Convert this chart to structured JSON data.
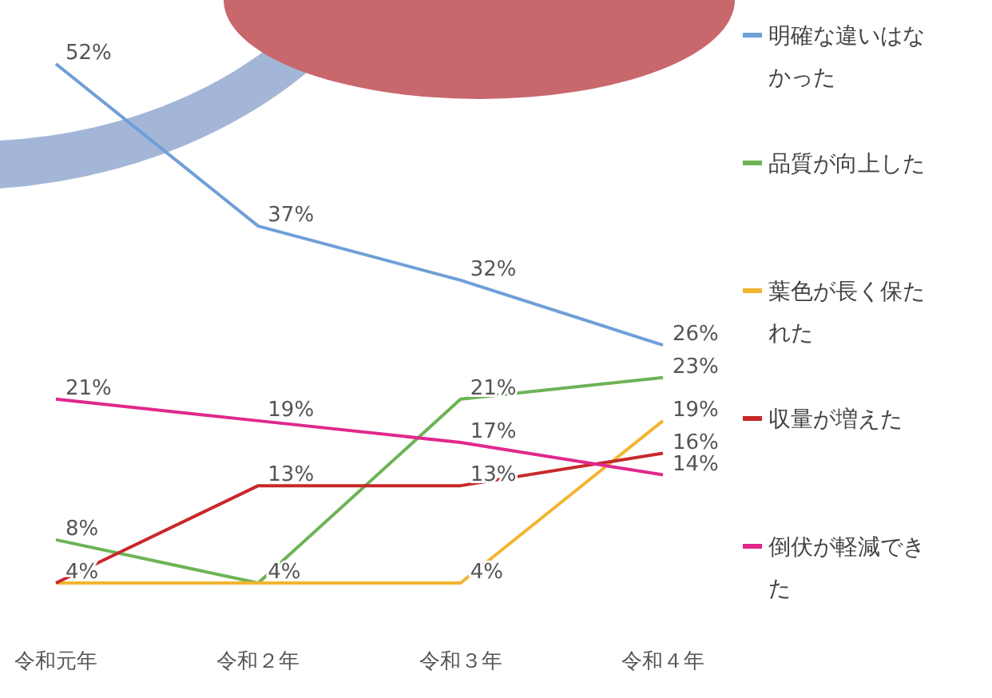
{
  "chart_data": {
    "type": "line",
    "categories": [
      "令和元年",
      "令和２年",
      "令和３年",
      "令和４年"
    ],
    "series": [
      {
        "name": "明確な違いはなかった",
        "color": "#6f9fd8",
        "values": [
          52,
          37,
          32,
          26
        ],
        "value_labels": [
          "52%",
          "37%",
          "32%",
          "26%"
        ]
      },
      {
        "name": "品質が向上した",
        "color": "#6db356",
        "values": [
          8,
          4,
          21,
          23
        ],
        "value_labels": [
          "8%",
          "4%",
          "21%",
          "23%"
        ]
      },
      {
        "name": "葉色が長く保たれた",
        "color": "#f2b530",
        "values": [
          4,
          4,
          4,
          19
        ],
        "value_labels": [
          null,
          null,
          "4%",
          "19%"
        ]
      },
      {
        "name": "収量が増えた",
        "color": "#c8282a",
        "values": [
          4,
          13,
          13,
          16
        ],
        "value_labels": [
          "4%",
          "13%",
          "13%",
          "16%"
        ]
      },
      {
        "name": "倒伏が軽減できた",
        "color": "#e0288c",
        "values": [
          21,
          19,
          17,
          14
        ],
        "value_labels": [
          "21%",
          "19%",
          "17%",
          "14%"
        ]
      }
    ],
    "legend": "right",
    "marker": "none",
    "line_style": "solid",
    "grid": false
  }
}
